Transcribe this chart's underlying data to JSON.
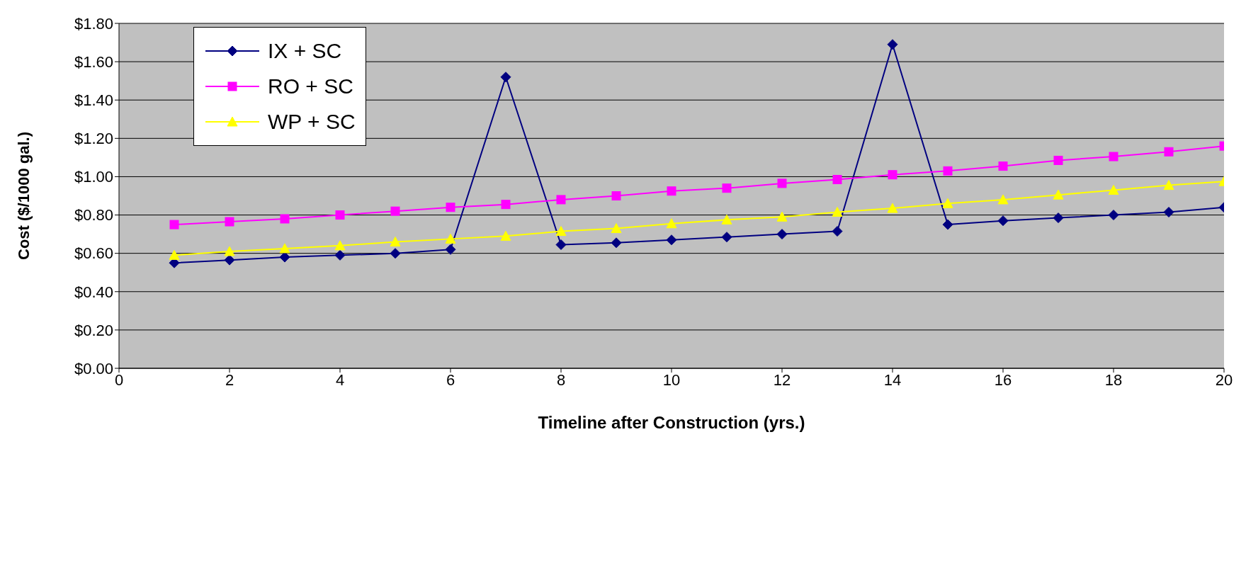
{
  "chart_data": {
    "type": "line",
    "xlabel": "Timeline after Construction (yrs.)",
    "ylabel": "Cost ($/1000 gal.)",
    "x": [
      1,
      2,
      3,
      4,
      5,
      6,
      7,
      8,
      9,
      10,
      11,
      12,
      13,
      14,
      15,
      16,
      17,
      18,
      19,
      20
    ],
    "series": [
      {
        "name": "IX + SC",
        "color": "#000080",
        "marker": "diamond",
        "values": [
          0.55,
          0.565,
          0.58,
          0.59,
          0.6,
          0.62,
          1.52,
          0.645,
          0.655,
          0.67,
          0.685,
          0.7,
          0.715,
          1.69,
          0.75,
          0.77,
          0.785,
          0.8,
          0.815,
          0.84
        ]
      },
      {
        "name": "RO + SC",
        "color": "#ff00ff",
        "marker": "square",
        "values": [
          0.75,
          0.765,
          0.78,
          0.8,
          0.82,
          0.84,
          0.855,
          0.88,
          0.9,
          0.925,
          0.94,
          0.965,
          0.985,
          1.01,
          1.03,
          1.055,
          1.085,
          1.105,
          1.13,
          1.16
        ]
      },
      {
        "name": "WP + SC",
        "color": "#ffff00",
        "marker": "triangle",
        "values": [
          0.59,
          0.61,
          0.625,
          0.64,
          0.66,
          0.675,
          0.69,
          0.715,
          0.73,
          0.755,
          0.775,
          0.79,
          0.815,
          0.835,
          0.86,
          0.88,
          0.905,
          0.93,
          0.955,
          0.975
        ]
      }
    ],
    "xlim": [
      0,
      20
    ],
    "xticks": [
      0,
      2,
      4,
      6,
      8,
      10,
      12,
      14,
      16,
      18,
      20
    ],
    "ylim": [
      0,
      1.8
    ],
    "yticks": [
      {
        "value": 0,
        "label": "$0.00"
      },
      {
        "value": 0.2,
        "label": "$0.20"
      },
      {
        "value": 0.4,
        "label": "$0.40"
      },
      {
        "value": 0.6,
        "label": "$0.60"
      },
      {
        "value": 0.8,
        "label": "$0.80"
      },
      {
        "value": 1.0,
        "label": "$1.00"
      },
      {
        "value": 1.2,
        "label": "$1.20"
      },
      {
        "value": 1.4,
        "label": "$1.40"
      },
      {
        "value": 1.6,
        "label": "$1.60"
      },
      {
        "value": 1.8,
        "label": "$1.80"
      }
    ],
    "grid": "y",
    "legend": "top left",
    "line_style": "solid"
  }
}
